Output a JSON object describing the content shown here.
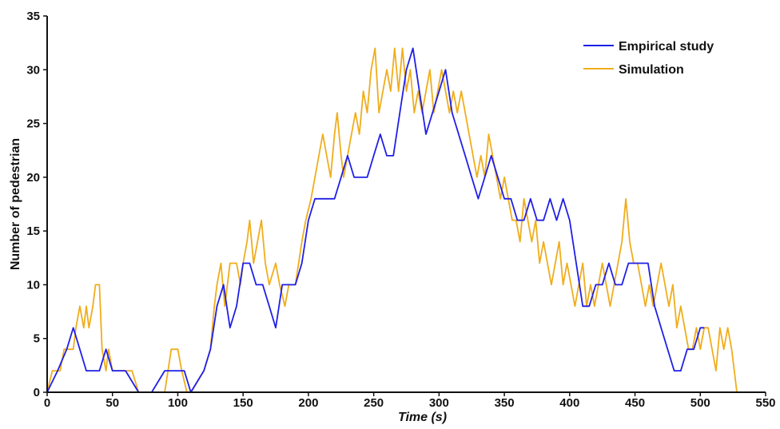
{
  "chart_data": {
    "type": "line",
    "xlabel": "Time (s)",
    "ylabel": "Number of pedestrian",
    "xlim": [
      0,
      550
    ],
    "ylim": [
      0,
      35
    ],
    "xticks": [
      "0",
      "50",
      "100",
      "150",
      "200",
      "250",
      "300",
      "350",
      "400",
      "450",
      "500",
      "550"
    ],
    "yticks": [
      "0",
      "5",
      "10",
      "15",
      "20",
      "25",
      "30",
      "35"
    ],
    "grid": false,
    "legend_position": "top-right",
    "series": [
      {
        "name": "Empirical study",
        "color": "#1f1fe8",
        "points": [
          [
            0,
            0
          ],
          [
            8,
            2
          ],
          [
            15,
            4
          ],
          [
            20,
            6
          ],
          [
            25,
            4
          ],
          [
            30,
            2
          ],
          [
            40,
            2
          ],
          [
            45,
            4
          ],
          [
            50,
            2
          ],
          [
            55,
            2
          ],
          [
            60,
            2
          ],
          [
            65,
            1
          ],
          [
            70,
            0
          ],
          [
            80,
            0
          ],
          [
            90,
            2
          ],
          [
            100,
            2
          ],
          [
            105,
            2
          ],
          [
            110,
            0
          ],
          [
            120,
            2
          ],
          [
            125,
            4
          ],
          [
            130,
            8
          ],
          [
            135,
            10
          ],
          [
            140,
            6
          ],
          [
            145,
            8
          ],
          [
            150,
            12
          ],
          [
            155,
            12
          ],
          [
            160,
            10
          ],
          [
            165,
            10
          ],
          [
            170,
            8
          ],
          [
            175,
            6
          ],
          [
            180,
            10
          ],
          [
            185,
            10
          ],
          [
            190,
            10
          ],
          [
            195,
            12
          ],
          [
            200,
            16
          ],
          [
            205,
            18
          ],
          [
            215,
            18
          ],
          [
            220,
            18
          ],
          [
            225,
            20
          ],
          [
            230,
            22
          ],
          [
            235,
            20
          ],
          [
            245,
            20
          ],
          [
            250,
            22
          ],
          [
            255,
            24
          ],
          [
            260,
            22
          ],
          [
            265,
            22
          ],
          [
            270,
            26
          ],
          [
            275,
            30
          ],
          [
            280,
            32
          ],
          [
            285,
            28
          ],
          [
            290,
            24
          ],
          [
            295,
            26
          ],
          [
            300,
            28
          ],
          [
            305,
            30
          ],
          [
            310,
            26
          ],
          [
            315,
            24
          ],
          [
            320,
            22
          ],
          [
            325,
            20
          ],
          [
            330,
            18
          ],
          [
            335,
            20
          ],
          [
            340,
            22
          ],
          [
            345,
            20
          ],
          [
            350,
            18
          ],
          [
            355,
            18
          ],
          [
            360,
            16
          ],
          [
            365,
            16
          ],
          [
            370,
            18
          ],
          [
            375,
            16
          ],
          [
            380,
            16
          ],
          [
            385,
            18
          ],
          [
            390,
            16
          ],
          [
            395,
            18
          ],
          [
            400,
            16
          ],
          [
            405,
            12
          ],
          [
            410,
            8
          ],
          [
            415,
            8
          ],
          [
            420,
            10
          ],
          [
            425,
            10
          ],
          [
            430,
            12
          ],
          [
            435,
            10
          ],
          [
            440,
            10
          ],
          [
            445,
            12
          ],
          [
            450,
            12
          ],
          [
            455,
            12
          ],
          [
            460,
            12
          ],
          [
            465,
            8
          ],
          [
            470,
            6
          ],
          [
            475,
            4
          ],
          [
            480,
            2
          ],
          [
            485,
            2
          ],
          [
            490,
            4
          ],
          [
            495,
            4
          ],
          [
            500,
            6
          ],
          [
            503,
            6
          ]
        ]
      },
      {
        "name": "Simulation",
        "color": "#f0ad1c",
        "points": [
          [
            0,
            0
          ],
          [
            4,
            2
          ],
          [
            10,
            2
          ],
          [
            13,
            4
          ],
          [
            16,
            4
          ],
          [
            20,
            4
          ],
          [
            22,
            6
          ],
          [
            25,
            8
          ],
          [
            28,
            6
          ],
          [
            30,
            8
          ],
          [
            32,
            6
          ],
          [
            35,
            8
          ],
          [
            37,
            10
          ],
          [
            40,
            10
          ],
          [
            42,
            4
          ],
          [
            45,
            2
          ],
          [
            47,
            4
          ],
          [
            50,
            2
          ],
          [
            60,
            2
          ],
          [
            65,
            2
          ],
          [
            70,
            0
          ],
          [
            80,
            0
          ],
          [
            90,
            0
          ],
          [
            95,
            4
          ],
          [
            100,
            4
          ],
          [
            103,
            2
          ],
          [
            107,
            0
          ],
          [
            110,
            0
          ],
          [
            120,
            2
          ],
          [
            125,
            4
          ],
          [
            128,
            8
          ],
          [
            130,
            10
          ],
          [
            133,
            12
          ],
          [
            136,
            8
          ],
          [
            140,
            12
          ],
          [
            145,
            12
          ],
          [
            148,
            10
          ],
          [
            150,
            12
          ],
          [
            153,
            14
          ],
          [
            155,
            16
          ],
          [
            158,
            12
          ],
          [
            161,
            14
          ],
          [
            164,
            16
          ],
          [
            167,
            12
          ],
          [
            170,
            10
          ],
          [
            175,
            12
          ],
          [
            178,
            10
          ],
          [
            182,
            8
          ],
          [
            185,
            10
          ],
          [
            190,
            10
          ],
          [
            195,
            14
          ],
          [
            198,
            16
          ],
          [
            202,
            18
          ],
          [
            205,
            20
          ],
          [
            208,
            22
          ],
          [
            211,
            24
          ],
          [
            214,
            22
          ],
          [
            217,
            20
          ],
          [
            220,
            24
          ],
          [
            222,
            26
          ],
          [
            225,
            22
          ],
          [
            227,
            20
          ],
          [
            230,
            22
          ],
          [
            233,
            24
          ],
          [
            236,
            26
          ],
          [
            239,
            24
          ],
          [
            242,
            28
          ],
          [
            245,
            26
          ],
          [
            248,
            30
          ],
          [
            251,
            32
          ],
          [
            254,
            26
          ],
          [
            257,
            28
          ],
          [
            260,
            30
          ],
          [
            263,
            28
          ],
          [
            266,
            32
          ],
          [
            269,
            28
          ],
          [
            272,
            32
          ],
          [
            275,
            28
          ],
          [
            278,
            30
          ],
          [
            281,
            26
          ],
          [
            284,
            28
          ],
          [
            287,
            26
          ],
          [
            290,
            28
          ],
          [
            293,
            30
          ],
          [
            296,
            26
          ],
          [
            299,
            28
          ],
          [
            302,
            30
          ],
          [
            305,
            28
          ],
          [
            308,
            26
          ],
          [
            311,
            28
          ],
          [
            314,
            26
          ],
          [
            317,
            28
          ],
          [
            320,
            26
          ],
          [
            323,
            24
          ],
          [
            326,
            22
          ],
          [
            329,
            20
          ],
          [
            332,
            22
          ],
          [
            335,
            20
          ],
          [
            338,
            24
          ],
          [
            341,
            22
          ],
          [
            344,
            20
          ],
          [
            347,
            18
          ],
          [
            350,
            20
          ],
          [
            353,
            18
          ],
          [
            356,
            16
          ],
          [
            359,
            16
          ],
          [
            362,
            14
          ],
          [
            365,
            18
          ],
          [
            368,
            16
          ],
          [
            371,
            14
          ],
          [
            374,
            16
          ],
          [
            377,
            12
          ],
          [
            380,
            14
          ],
          [
            383,
            12
          ],
          [
            386,
            10
          ],
          [
            389,
            12
          ],
          [
            392,
            14
          ],
          [
            395,
            10
          ],
          [
            398,
            12
          ],
          [
            401,
            10
          ],
          [
            404,
            8
          ],
          [
            407,
            10
          ],
          [
            410,
            12
          ],
          [
            413,
            8
          ],
          [
            416,
            10
          ],
          [
            419,
            8
          ],
          [
            422,
            10
          ],
          [
            425,
            12
          ],
          [
            428,
            10
          ],
          [
            431,
            8
          ],
          [
            434,
            10
          ],
          [
            437,
            12
          ],
          [
            440,
            14
          ],
          [
            443,
            18
          ],
          [
            446,
            14
          ],
          [
            449,
            12
          ],
          [
            452,
            12
          ],
          [
            455,
            10
          ],
          [
            458,
            8
          ],
          [
            461,
            10
          ],
          [
            464,
            8
          ],
          [
            467,
            10
          ],
          [
            470,
            12
          ],
          [
            473,
            10
          ],
          [
            476,
            8
          ],
          [
            479,
            10
          ],
          [
            482,
            6
          ],
          [
            485,
            8
          ],
          [
            488,
            6
          ],
          [
            491,
            4
          ],
          [
            494,
            4
          ],
          [
            497,
            6
          ],
          [
            500,
            4
          ],
          [
            503,
            6
          ],
          [
            506,
            6
          ],
          [
            509,
            4
          ],
          [
            512,
            2
          ],
          [
            515,
            6
          ],
          [
            518,
            4
          ],
          [
            521,
            6
          ],
          [
            524,
            4
          ],
          [
            526,
            2
          ],
          [
            528,
            0
          ]
        ]
      }
    ]
  }
}
